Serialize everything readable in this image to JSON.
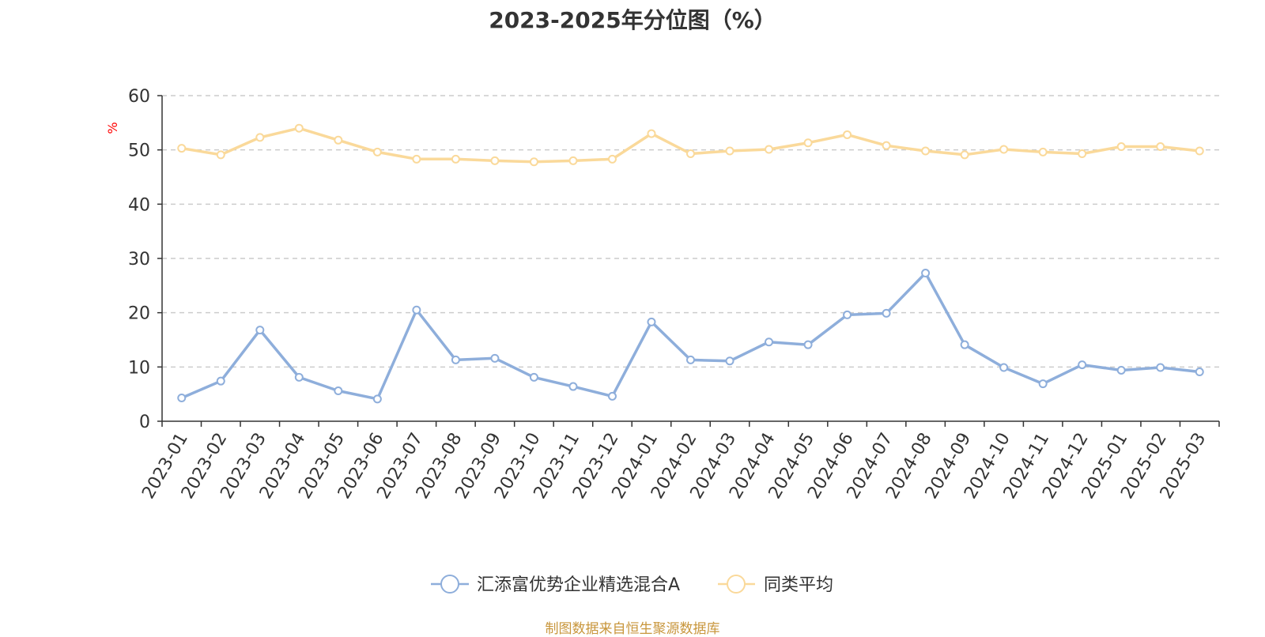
{
  "chart_data": {
    "type": "line",
    "title": "2023-2025年分位图（%）",
    "ylabel": "%",
    "ylim": [
      0,
      60
    ],
    "yticks": [
      0,
      10,
      20,
      30,
      40,
      50,
      60
    ],
    "grid": true,
    "legend_position": "bottom-center",
    "categories": [
      "2023-01",
      "2023-02",
      "2023-03",
      "2023-04",
      "2023-05",
      "2023-06",
      "2023-07",
      "2023-08",
      "2023-09",
      "2023-10",
      "2023-11",
      "2023-12",
      "2024-01",
      "2024-02",
      "2024-03",
      "2024-04",
      "2024-05",
      "2024-06",
      "2024-07",
      "2024-08",
      "2024-09",
      "2024-10",
      "2024-11",
      "2024-12",
      "2025-01",
      "2025-02",
      "2025-03"
    ],
    "series": [
      {
        "name": "汇添富优势企业精选混合A",
        "color": "#8eaedb",
        "values": [
          4.3,
          7.4,
          16.8,
          8.1,
          5.6,
          4.1,
          20.5,
          11.3,
          11.6,
          8.1,
          6.4,
          4.6,
          18.3,
          11.3,
          11.1,
          14.6,
          14.1,
          19.6,
          19.9,
          27.3,
          14.1,
          9.9,
          6.9,
          10.4,
          9.4,
          9.9,
          9.1
        ]
      },
      {
        "name": "同类平均",
        "color": "#fad99a",
        "values": [
          50.3,
          49.1,
          52.3,
          54.0,
          51.8,
          49.6,
          48.3,
          48.3,
          48.0,
          47.8,
          48.0,
          48.3,
          53.0,
          49.3,
          49.8,
          50.1,
          51.3,
          52.8,
          50.8,
          49.8,
          49.1,
          50.1,
          49.6,
          49.3,
          50.6,
          50.6,
          49.8
        ]
      }
    ]
  },
  "footer": {
    "source": "制图数据来自恒生聚源数据库"
  }
}
